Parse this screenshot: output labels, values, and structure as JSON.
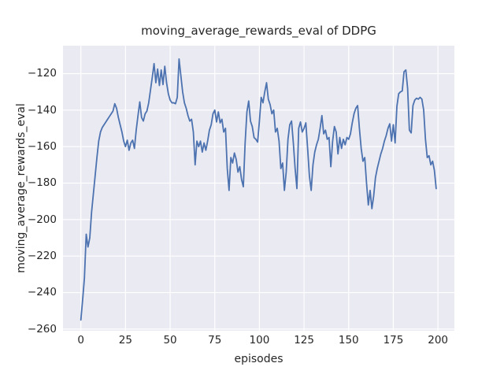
{
  "figure": {
    "title": "moving_average_rewards_eval of DDPG",
    "background_color": "#ffffff"
  },
  "chart_data": {
    "type": "line",
    "title": "moving_average_rewards_eval of DDPG",
    "xlabel": "episodes",
    "ylabel": "moving_average_rewards_eval",
    "x_ticks": [
      0,
      25,
      50,
      75,
      100,
      125,
      150,
      175,
      200
    ],
    "y_ticks": [
      -120,
      -140,
      -160,
      -180,
      -200,
      -220,
      -240,
      -260
    ],
    "xlim": [
      -10,
      209.2
    ],
    "ylim": [
      -260.8,
      -104.8
    ],
    "grid": true,
    "legend": null,
    "plot_bg_color": "#eaeaf2",
    "grid_color": "#ffffff",
    "line_color": "#4c72b0",
    "text_color": "#262626",
    "series": [
      {
        "name": "moving_average_rewards_eval",
        "x_start": 0,
        "x_step": 1,
        "values": [
          -255,
          -244,
          -232,
          -208,
          -215,
          -210,
          -196,
          -186,
          -176,
          -166,
          -157,
          -152,
          -149.5,
          -148,
          -146.5,
          -145,
          -143.5,
          -142,
          -140.5,
          -136.5,
          -139,
          -144,
          -148,
          -152,
          -157,
          -160,
          -156.5,
          -162,
          -158,
          -156.5,
          -161,
          -151,
          -143,
          -135.5,
          -144,
          -146,
          -142,
          -140.5,
          -136,
          -129,
          -122,
          -114.5,
          -125,
          -117.5,
          -126.5,
          -118,
          -126,
          -116,
          -125,
          -131,
          -134.5,
          -136,
          -136,
          -136.5,
          -133,
          -112,
          -121,
          -130,
          -136,
          -139,
          -143,
          -146,
          -145,
          -152,
          -170,
          -157,
          -160,
          -157,
          -163,
          -158,
          -162,
          -157,
          -151,
          -148,
          -142,
          -140,
          -146.5,
          -141,
          -147,
          -145,
          -152,
          -150,
          -172,
          -184,
          -166,
          -169,
          -163.5,
          -167,
          -174,
          -171,
          -178,
          -182,
          -158,
          -141,
          -135,
          -146,
          -149,
          -155,
          -156,
          -157.5,
          -146,
          -133,
          -136,
          -130,
          -125,
          -134,
          -137,
          -142,
          -140,
          -152,
          -150,
          -157,
          -172,
          -169,
          -184,
          -174,
          -156,
          -148,
          -146,
          -158,
          -172,
          -183,
          -150,
          -146.5,
          -152,
          -150,
          -147,
          -161,
          -176,
          -184,
          -170,
          -163,
          -159,
          -156,
          -150,
          -143,
          -153,
          -151,
          -156,
          -155,
          -171,
          -157,
          -149,
          -152,
          -164,
          -155,
          -161,
          -156,
          -159,
          -155,
          -156,
          -153,
          -147,
          -142,
          -139,
          -137.5,
          -150,
          -161,
          -168,
          -166,
          -180,
          -192,
          -184,
          -194,
          -187,
          -177,
          -172,
          -168,
          -164,
          -161,
          -157,
          -154,
          -150,
          -147.5,
          -157,
          -148,
          -158,
          -138,
          -131,
          -130,
          -129.5,
          -119,
          -118,
          -128,
          -151,
          -152.5,
          -137.5,
          -134.5,
          -133.5,
          -134,
          -133,
          -134,
          -140,
          -156,
          -166,
          -165,
          -170,
          -168,
          -173,
          -183
        ]
      }
    ]
  }
}
